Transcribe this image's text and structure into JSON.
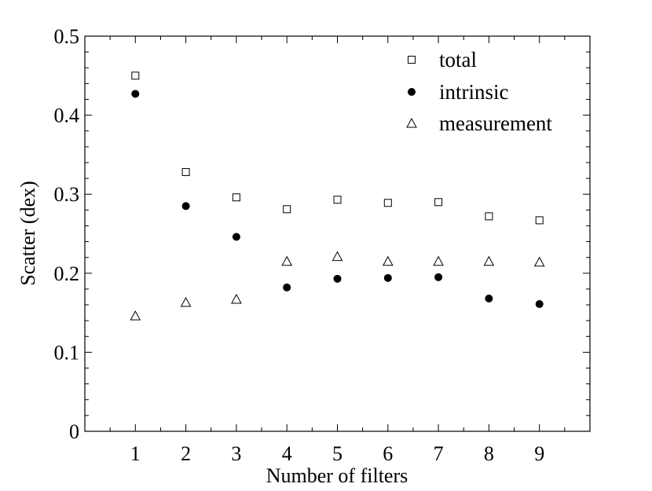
{
  "chart_data": {
    "type": "scatter",
    "xlabel": "Number of filters",
    "ylabel": "Scatter (dex)",
    "x": [
      1,
      2,
      3,
      4,
      5,
      6,
      7,
      8,
      9
    ],
    "xlim": [
      0,
      10
    ],
    "ylim": [
      0,
      0.5
    ],
    "x_ticks": [
      "1",
      "2",
      "3",
      "4",
      "5",
      "6",
      "7",
      "8",
      "9"
    ],
    "y_ticks": [
      "0",
      "0.1",
      "0.2",
      "0.3",
      "0.4",
      "0.5"
    ],
    "grid": false,
    "legend_position": "top-right",
    "series": [
      {
        "name": "total",
        "marker": "open-square",
        "color": "#000000",
        "values": [
          0.45,
          0.328,
          0.296,
          0.281,
          0.293,
          0.289,
          0.29,
          0.272,
          0.267
        ]
      },
      {
        "name": "intrinsic",
        "marker": "filled-circle",
        "color": "#000000",
        "values": [
          0.427,
          0.285,
          0.246,
          0.182,
          0.193,
          0.194,
          0.195,
          0.168,
          0.161
        ]
      },
      {
        "name": "measurement",
        "marker": "open-triangle",
        "color": "#000000",
        "values": [
          0.146,
          0.163,
          0.167,
          0.215,
          0.221,
          0.215,
          0.215,
          0.215,
          0.214
        ]
      }
    ]
  }
}
